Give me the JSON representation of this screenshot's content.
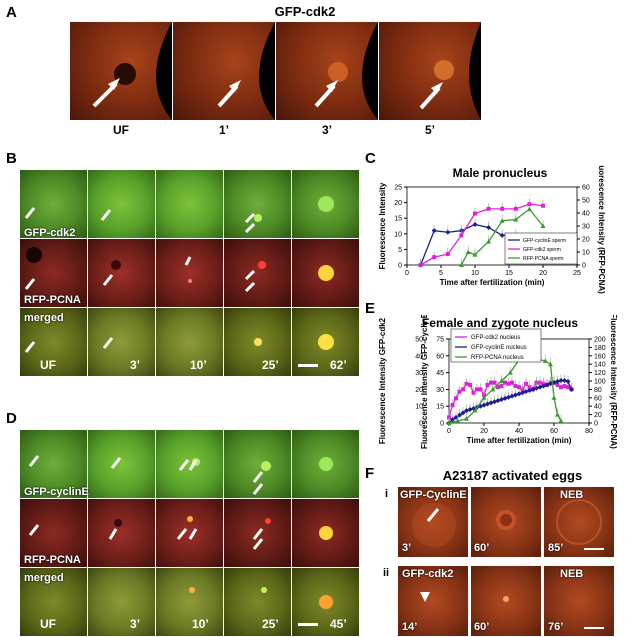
{
  "panel_labels": {
    "A": "A",
    "B": "B",
    "C": "C",
    "D": "D",
    "E": "E",
    "F": "F"
  },
  "panelA": {
    "title": "GFP-cdk2",
    "captions": [
      "UF",
      "1’",
      "3’",
      "5’"
    ]
  },
  "panelB": {
    "row_labels": [
      "GFP-cdk2",
      "RFP-PCNA",
      "merged"
    ],
    "timepoints": [
      "UF",
      "3’",
      "10’",
      "25’",
      "62’"
    ]
  },
  "panelD": {
    "row_labels": [
      "GFP-cyclinE",
      "RFP-PCNA",
      "merged"
    ],
    "timepoints": [
      "UF",
      "3’",
      "10’",
      "25’",
      "45’"
    ]
  },
  "panelF": {
    "title": "A23187 activated eggs",
    "row_i": {
      "roman": "i",
      "label": "GFP-CyclinE",
      "times": [
        "3’",
        "60’",
        "85’"
      ],
      "third_label": "NEB"
    },
    "row_ii": {
      "roman": "ii",
      "label": "GFP-cdk2",
      "times": [
        "14’",
        "60’",
        "76’"
      ],
      "third_label": "NEB"
    }
  },
  "chart_data": [
    {
      "type": "line",
      "title": "Male pronucleus",
      "xlabel": "Time after fertilization (min)",
      "ylabel": "Fluorescence Intensity",
      "y2label": "Fluorescence Intensity (RFP-PCNA)",
      "xlim": [
        0,
        25
      ],
      "ylim": [
        0,
        25
      ],
      "y2lim": [
        0,
        60
      ],
      "xticks": [
        0,
        5,
        10,
        15,
        20,
        25
      ],
      "yticks": [
        0,
        5,
        10,
        15,
        20,
        25
      ],
      "y2ticks": [
        0,
        10,
        20,
        30,
        40,
        50,
        60
      ],
      "colors": {
        "cyclinE": "#1a1f8c",
        "cdk2": "#e020d8",
        "pcna": "#3a9a2a"
      },
      "legend": [
        "GFP-cyclinE sperm",
        "GFP-cdk2 sperm",
        "RFP-PCNA sperm"
      ],
      "series": [
        {
          "name": "GFP-cyclinE sperm",
          "axis": "left",
          "x": [
            2,
            4,
            6,
            8,
            10,
            12,
            14,
            16
          ],
          "values": [
            0,
            11,
            10.5,
            11,
            13,
            12,
            9.5,
            9.5
          ]
        },
        {
          "name": "GFP-cdk2 sperm",
          "axis": "left",
          "x": [
            2,
            4,
            6,
            8,
            10,
            12,
            14,
            16,
            18,
            20
          ],
          "values": [
            0,
            2.5,
            3.5,
            9.5,
            16.5,
            18,
            18,
            18,
            19.5,
            19
          ]
        },
        {
          "name": "RFP-PCNA sperm",
          "axis": "right",
          "x": [
            8,
            9,
            10,
            12,
            14,
            16,
            18,
            20
          ],
          "values": [
            0,
            10,
            8,
            18,
            34,
            35,
            43,
            30
          ]
        }
      ]
    },
    {
      "type": "line",
      "title": "Female and zygote nucleus",
      "xlabel": "Time after fertilization (min)",
      "ylabel": "Fluorescence Intensity GFP-cyclinE",
      "ylabel2": "Fluorescence Intensity GFP-cdk2",
      "y2label": "Fluorescence Intensity (RFP-PCNA)",
      "xlim": [
        0,
        80
      ],
      "ylim": [
        0,
        75
      ],
      "yticks": [
        0,
        15,
        30,
        45,
        60,
        75
      ],
      "ylim_inner": [
        0,
        50
      ],
      "yticks_inner": [
        0,
        10,
        20,
        30,
        40,
        50
      ],
      "y2lim": [
        0,
        200
      ],
      "y2ticks": [
        0,
        20,
        40,
        60,
        80,
        100,
        120,
        140,
        160,
        180,
        200
      ],
      "xticks": [
        0,
        20,
        40,
        60,
        80
      ],
      "colors": {
        "cdk2": "#e020d8",
        "cyclinE": "#1a1f8c",
        "pcna": "#3a9a2a"
      },
      "legend": [
        "GFP-cdk2 nucleus",
        "GFP-cyclinE nucleus",
        "RFP-PCNA nucleus"
      ],
      "series": [
        {
          "name": "GFP-cdk2 nucleus",
          "axis": "left",
          "x": [
            0,
            2,
            4,
            6,
            8,
            10,
            12,
            14,
            16,
            18,
            20,
            22,
            24,
            26,
            28,
            30,
            32,
            34,
            36,
            38,
            40,
            42,
            44,
            46,
            48,
            50,
            52,
            54,
            56,
            58,
            60,
            62,
            64,
            66,
            68,
            70
          ],
          "values": [
            5,
            16,
            22,
            28,
            30,
            35,
            34,
            27,
            30,
            30,
            25,
            34,
            36,
            36,
            32,
            33,
            36,
            35,
            36,
            33,
            32,
            30,
            35,
            32,
            30,
            36,
            36,
            35,
            34,
            36,
            36,
            34,
            32,
            33,
            32,
            30
          ]
        },
        {
          "name": "GFP-cyclinE nucleus",
          "axis": "left",
          "x": [
            0,
            2,
            4,
            6,
            8,
            10,
            12,
            14,
            16,
            18,
            20,
            22,
            24,
            26,
            28,
            30,
            32,
            34,
            36,
            38,
            40,
            42,
            44,
            46,
            48,
            50,
            52,
            54,
            56,
            58,
            60,
            62,
            64,
            66,
            68,
            70
          ],
          "values": [
            0,
            3,
            5,
            7,
            9,
            11,
            12,
            13,
            14,
            15,
            16,
            17,
            18,
            19,
            20,
            21,
            22,
            23,
            24,
            25,
            26,
            27,
            28,
            29,
            30,
            31,
            32,
            33,
            34,
            35,
            36,
            37,
            38,
            38,
            37,
            30
          ]
        },
        {
          "name": "RFP-PCNA nucleus",
          "axis": "right",
          "x": [
            0,
            5,
            10,
            15,
            20,
            25,
            30,
            35,
            40,
            45,
            50,
            55,
            58,
            60,
            62,
            64
          ],
          "values": [
            0,
            5,
            10,
            30,
            60,
            80,
            100,
            120,
            150,
            155,
            152,
            148,
            140,
            60,
            20,
            5
          ]
        }
      ]
    }
  ]
}
